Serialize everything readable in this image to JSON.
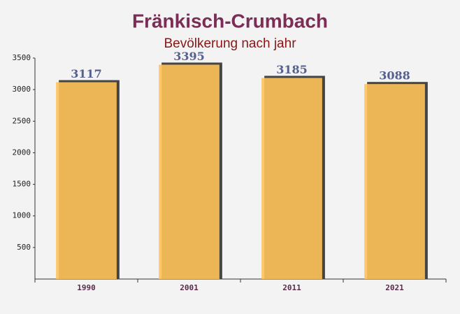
{
  "chart_data": {
    "type": "bar",
    "title": "Fränkisch-Crumbach",
    "subtitle": "Bevölkerung nach jahr",
    "categories": [
      "1990",
      "2001",
      "2011",
      "2021"
    ],
    "values": [
      3117,
      3395,
      3185,
      3088
    ],
    "color": "#ffc35a",
    "ylim": [
      0,
      3500
    ],
    "yticks": [
      500,
      1000,
      1500,
      2000,
      2500,
      3000,
      3500
    ]
  }
}
